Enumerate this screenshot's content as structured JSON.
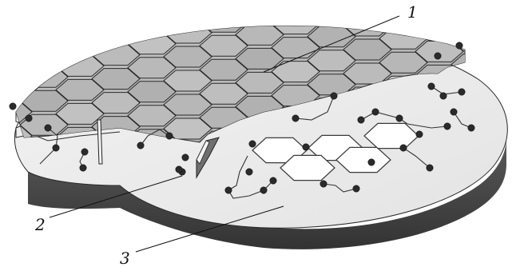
{
  "figure": {
    "callouts": [
      {
        "id": "1",
        "label": "1"
      },
      {
        "id": "2",
        "label": "2"
      },
      {
        "id": "3",
        "label": "3"
      }
    ],
    "colors": {
      "background": "#ffffff",
      "substrate_top": "#ededed",
      "substrate_side": "#4d4d4d",
      "sheet_fill": "#b5b5b5",
      "outline": "#2a2a2a"
    }
  }
}
